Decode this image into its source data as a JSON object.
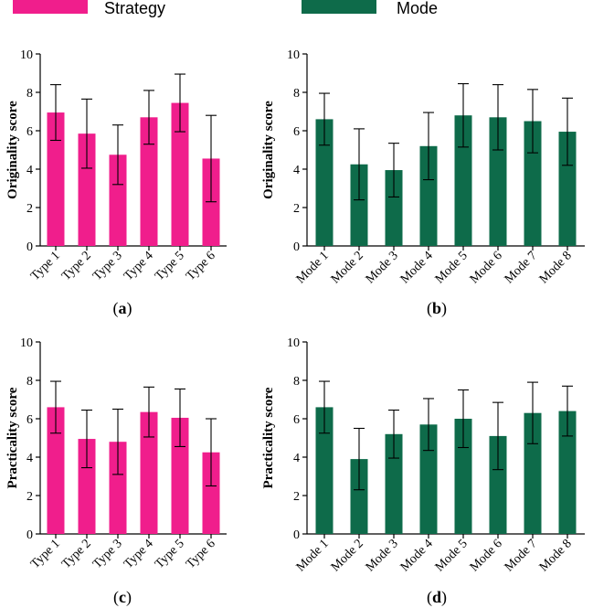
{
  "legend": [
    {
      "label": "Strategy",
      "color": "#F01E8C"
    },
    {
      "label": "Mode",
      "color": "#0E6B4A"
    }
  ],
  "chart_data": [
    {
      "type": "bar",
      "panel": "(a)",
      "panel_letter": "a",
      "series_name": "Strategy",
      "color": "#F01E8C",
      "ylabel": "Originality score",
      "ylim": [
        0,
        10
      ],
      "yticks": [
        0,
        2,
        4,
        6,
        8,
        10
      ],
      "categories": [
        "Type 1",
        "Type 2",
        "Type 3",
        "Type 4",
        "Type 5",
        "Type 6"
      ],
      "values": [
        6.95,
        5.85,
        4.75,
        6.7,
        7.45,
        4.55
      ],
      "errors": [
        1.45,
        1.8,
        1.55,
        1.4,
        1.5,
        2.25
      ]
    },
    {
      "type": "bar",
      "panel": "(b)",
      "panel_letter": "b",
      "series_name": "Mode",
      "color": "#0E6B4A",
      "ylabel": "Originality score",
      "ylim": [
        0,
        10
      ],
      "yticks": [
        0,
        2,
        4,
        6,
        8,
        10
      ],
      "categories": [
        "Mode 1",
        "Mode 2",
        "Mode 3",
        "Mode 4",
        "Mode 5",
        "Mode 6",
        "Mode 7",
        "Mode 8"
      ],
      "values": [
        6.6,
        4.25,
        3.95,
        5.2,
        6.8,
        6.7,
        6.5,
        5.95
      ],
      "errors": [
        1.35,
        1.85,
        1.4,
        1.75,
        1.65,
        1.7,
        1.65,
        1.75
      ]
    },
    {
      "type": "bar",
      "panel": "(c)",
      "panel_letter": "c",
      "series_name": "Strategy",
      "color": "#F01E8C",
      "ylabel": "Practicality score",
      "ylim": [
        0,
        10
      ],
      "yticks": [
        0,
        2,
        4,
        6,
        8,
        10
      ],
      "categories": [
        "Type 1",
        "Type 2",
        "Type 3",
        "Type 4",
        "Type 5",
        "Type 6"
      ],
      "values": [
        6.6,
        4.95,
        4.8,
        6.35,
        6.05,
        4.25
      ],
      "errors": [
        1.35,
        1.5,
        1.7,
        1.3,
        1.5,
        1.75
      ]
    },
    {
      "type": "bar",
      "panel": "(d)",
      "panel_letter": "d",
      "series_name": "Mode",
      "color": "#0E6B4A",
      "ylabel": "Practicality score",
      "ylim": [
        0,
        10
      ],
      "yticks": [
        0,
        2,
        4,
        6,
        8,
        10
      ],
      "categories": [
        "Mode 1",
        "Mode 2",
        "Mode 3",
        "Mode 4",
        "Mode 5",
        "Mode 6",
        "Mode 7",
        "Mode 8"
      ],
      "values": [
        6.6,
        3.9,
        5.2,
        5.7,
        6.0,
        5.1,
        6.3,
        6.4
      ],
      "errors": [
        1.35,
        1.6,
        1.25,
        1.35,
        1.5,
        1.75,
        1.6,
        1.3
      ]
    }
  ]
}
